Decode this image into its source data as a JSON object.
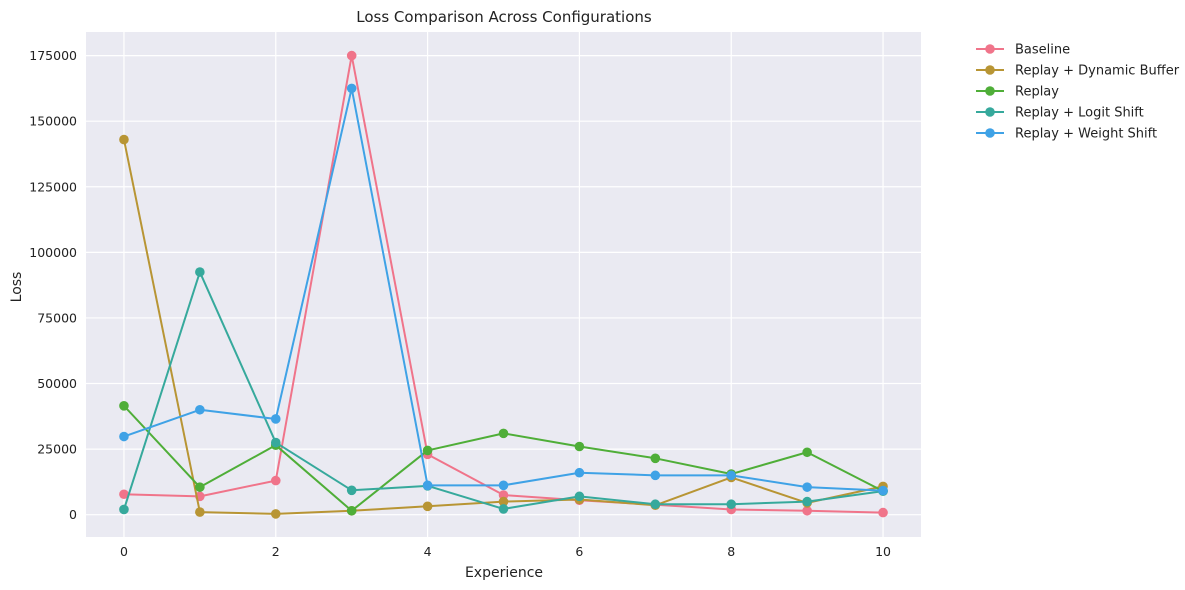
{
  "chart_data": {
    "type": "line",
    "title": "Loss Comparison Across Configurations",
    "xlabel": "Experience",
    "ylabel": "Loss",
    "x": [
      0,
      1,
      2,
      3,
      4,
      5,
      6,
      7,
      8,
      9,
      10
    ],
    "xlim": [
      -0.5,
      10.5
    ],
    "ylim": [
      -8500,
      184000
    ],
    "xticks": [
      0,
      2,
      4,
      6,
      8,
      10
    ],
    "yticks": [
      0,
      25000,
      50000,
      75000,
      100000,
      125000,
      150000,
      175000
    ],
    "grid": true,
    "legend_position": "outside-top-right",
    "background_color": "#eaeaf2",
    "grid_color": "#ffffff",
    "series": [
      {
        "name": "Baseline",
        "color": "#f0748a",
        "values": [
          7800,
          7000,
          13000,
          175000,
          23000,
          7500,
          5500,
          3800,
          2000,
          1500,
          800
        ]
      },
      {
        "name": "Replay + Dynamic Buffer",
        "color": "#b89534",
        "values": [
          143000,
          1000,
          300,
          1500,
          3200,
          5000,
          5800,
          3600,
          14200,
          4500,
          10800
        ]
      },
      {
        "name": "Replay",
        "color": "#4fae38",
        "values": [
          41500,
          10500,
          26500,
          1500,
          24500,
          31000,
          26000,
          21500,
          15500,
          23800,
          9000
        ]
      },
      {
        "name": "Replay + Logit Shift",
        "color": "#36a99c",
        "values": [
          2000,
          92500,
          27500,
          9300,
          11000,
          2200,
          7000,
          4000,
          4000,
          5000,
          9000
        ]
      },
      {
        "name": "Replay + Weight Shift",
        "color": "#3fa2e6",
        "values": [
          29800,
          40000,
          36500,
          162500,
          11200,
          11200,
          16000,
          15000,
          15000,
          10500,
          9200
        ]
      }
    ]
  }
}
